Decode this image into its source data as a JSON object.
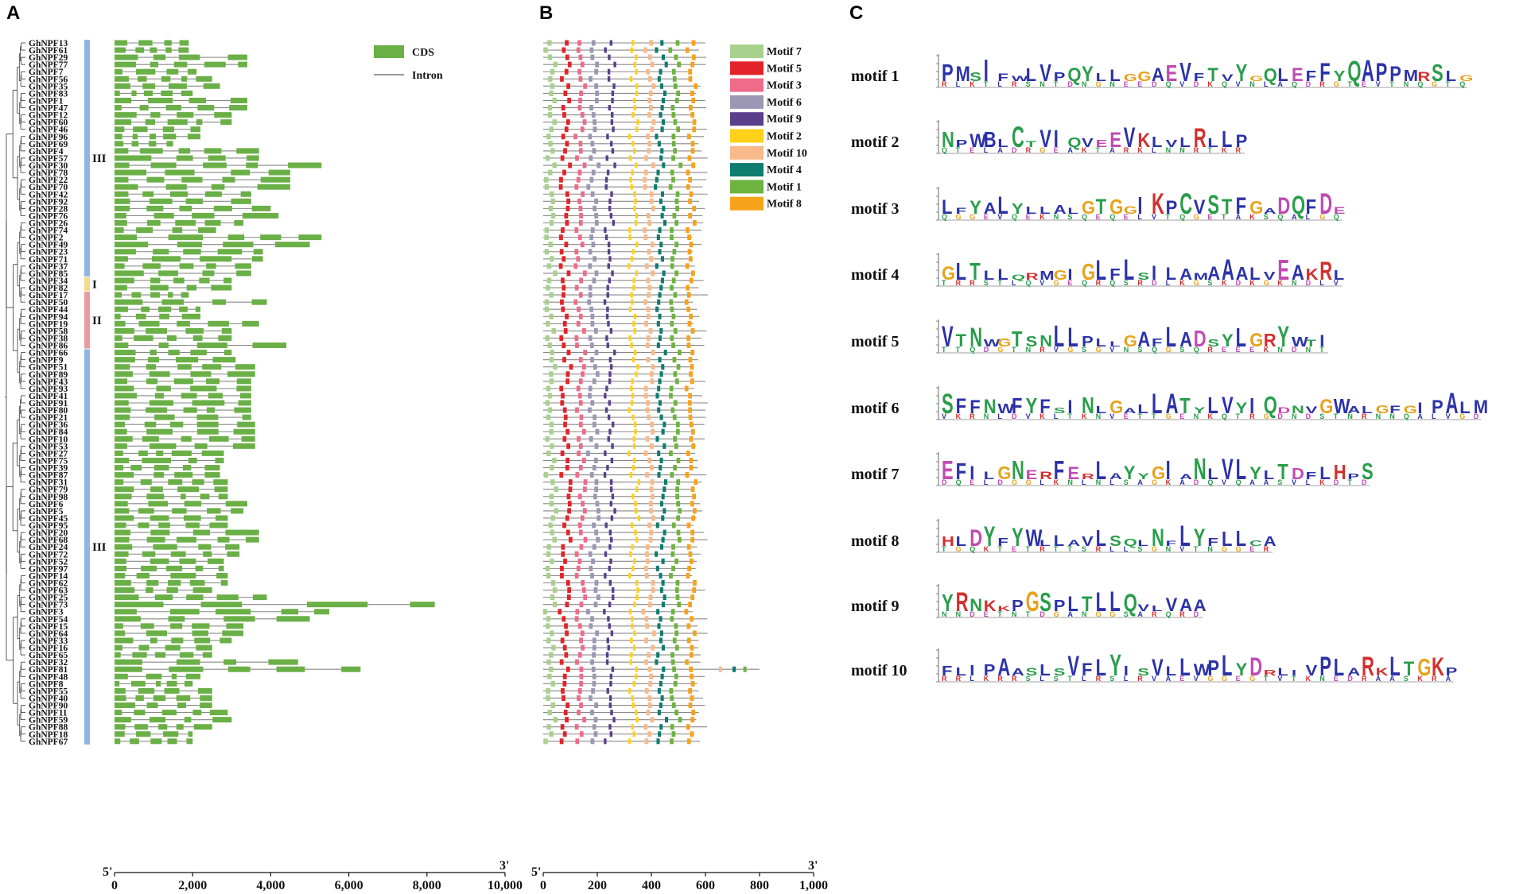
{
  "panels": {
    "a": "A",
    "b": "B",
    "c": "C"
  },
  "genes": [
    "GhNPF13",
    "GhNPF61",
    "GhNPF29",
    "GhNPF77",
    "GhNPF7",
    "GhNPF56",
    "GhNPF35",
    "GhNPF83",
    "GhNPF1",
    "GhNPF47",
    "GhNPF12",
    "GhNPF60",
    "GhNPF46",
    "GhNPF96",
    "GhNPF69",
    "GhNPF4",
    "GhNPF57",
    "GhNPF30",
    "GhNPF78",
    "GhNPF22",
    "GhNPF70",
    "GhNPF42",
    "GhNPF92",
    "GhNPF28",
    "GhNPF76",
    "GhNPF26",
    "GhNPF74",
    "GhNPF2",
    "GhNPF49",
    "GhNPF23",
    "GhNPF71",
    "GhNPF37",
    "GhNPF85",
    "GhNPF34",
    "GhNPF82",
    "GhNPF17",
    "GhNPF50",
    "GhNPF44",
    "GhNPF94",
    "GhNPF19",
    "GhNPF58",
    "GhNPF38",
    "GhNPF86",
    "GhNPF66",
    "GhNPF9",
    "GhNPF51",
    "GhNPF89",
    "GhNPF43",
    "GhNPF93",
    "GhNPF41",
    "GhNPF91",
    "GhNPF80",
    "GhNPF21",
    "GhNPF36",
    "GhNPF84",
    "GhNPF10",
    "GhNPF53",
    "GhNPF27",
    "GhNPF75",
    "GhNPF39",
    "GhNPF87",
    "GhNPF31",
    "GhNPF79",
    "GhNPF98",
    "GhNPF6",
    "GhNPF5",
    "GhNPF45",
    "GhNPF95",
    "GhNPF20",
    "GhNPF68",
    "GhNPF24",
    "GhNPF72",
    "GhNPF52",
    "GhNPF97",
    "GhNPF14",
    "GhNPF62",
    "GhNPF63",
    "GhNPF25",
    "GhNPF73",
    "GhNPF3",
    "GhNPF54",
    "GhNPF15",
    "GhNPF64",
    "GhNPF33",
    "GhNPF16",
    "GhNPF65",
    "GhNPF32",
    "GhNPF81",
    "GhNPF48",
    "GhNPF8",
    "GhNPF55",
    "GhNPF40",
    "GhNPF90",
    "GhNPF11",
    "GhNPF59",
    "GhNPF88",
    "GhNPF18",
    "GhNPF67"
  ],
  "gene_lengths_bp": [
    1900,
    1900,
    3400,
    3400,
    2100,
    2500,
    2700,
    2000,
    3400,
    3400,
    3000,
    3000,
    2200,
    2200,
    1500,
    3700,
    3700,
    5300,
    4500,
    4500,
    4500,
    3500,
    3500,
    4000,
    4200,
    3300,
    2600,
    5300,
    5000,
    3800,
    3800,
    3500,
    3500,
    3000,
    3000,
    1900,
    3900,
    2200,
    2200,
    3700,
    3000,
    3000,
    4400,
    3000,
    3100,
    3600,
    3600,
    3500,
    3500,
    3500,
    3500,
    3500,
    3500,
    3600,
    3600,
    3600,
    3600,
    2800,
    2800,
    2700,
    2700,
    2900,
    2900,
    2900,
    3400,
    3300,
    2900,
    2900,
    3700,
    3700,
    3200,
    3200,
    2800,
    2800,
    2900,
    2900,
    2500,
    3900,
    8200,
    5500,
    5000,
    3300,
    3300,
    3000,
    2500,
    2500,
    4700,
    6300,
    2200,
    2000,
    2500,
    2500,
    2500,
    2900,
    3000,
    2500,
    2000,
    2000
  ],
  "groups": [
    {
      "label": "III",
      "from": 0,
      "to": 32,
      "color": "#8fb6dd"
    },
    {
      "label": "I",
      "from": 33,
      "to": 34,
      "color": "#f3dc8a"
    },
    {
      "label": "II",
      "from": 35,
      "to": 42,
      "color": "#e89ba3"
    },
    {
      "label": "III",
      "from": 43,
      "to": 97,
      "color": "#8fb6dd"
    }
  ],
  "gene_axis": {
    "ticks": [
      "0",
      "2,000",
      "4,000",
      "6,000",
      "8,000",
      "10,000"
    ],
    "end5": "5'",
    "end3": "3'",
    "max": 10000
  },
  "motif_axis": {
    "ticks": [
      "0",
      "200",
      "400",
      "600",
      "800",
      "1,000"
    ],
    "end5": "5'",
    "end3": "3'",
    "max": 1000
  },
  "gene_legend": [
    {
      "name": "CDS",
      "color": "#6ab046"
    },
    {
      "name": "Intron",
      "color": "#777777"
    }
  ],
  "motif_legend": [
    {
      "name": "Motif 7",
      "color": "#a9d18e"
    },
    {
      "name": "Motif 5",
      "color": "#e3232a"
    },
    {
      "name": "Motif 3",
      "color": "#ee6b8a"
    },
    {
      "name": "Motif 6",
      "color": "#9b97b5"
    },
    {
      "name": "Motif 9",
      "color": "#5a3f8c"
    },
    {
      "name": "Motif 2",
      "color": "#ffd11a"
    },
    {
      "name": "Motif 10",
      "color": "#f9b98a"
    },
    {
      "name": "Motif 4",
      "color": "#0e7c6e"
    },
    {
      "name": "Motif 1",
      "color": "#6db33f"
    },
    {
      "name": "Motif 8",
      "color": "#f7a21b"
    }
  ],
  "motif_order": [
    "Motif 7",
    "Motif 5",
    "Motif 3",
    "Motif 6",
    "Motif 9",
    "Motif 2",
    "Motif 10",
    "Motif 4",
    "Motif 1",
    "Motif 8"
  ],
  "motif_positions_aa": [
    20,
    75,
    130,
    180,
    240,
    330,
    385,
    430,
    480,
    540
  ],
  "protein_length_aa": 580,
  "logos": [
    {
      "label": "motif 1",
      "seq": "PMSIFWLVPQYLLGGAEVFTVYGQLEFFYQAPPMRSLG"
    },
    {
      "label": "motif 2",
      "seq": "NPWBLCTVIQVEEVKLVLRLLP"
    },
    {
      "label": "motif 3",
      "seq": "LFYALYLLALGTGGIKPCVSTFGADQFDE"
    },
    {
      "label": "motif 4",
      "seq": "GLTLLQRMGIGLFLSILAMAAALVEAKRL"
    },
    {
      "label": "motif 5",
      "seq": "VTNWGTSNLLPLLGAFLADSYLGRYWTI"
    },
    {
      "label": "motif 6",
      "seq": "SFFNWFYFSINLGALLATYLVYIQDNVGWALGFGIPALM"
    },
    {
      "label": "motif 7",
      "seq": "EFILGNERFERLAYYGIANLVLYLTDFLHPS"
    },
    {
      "label": "motif 8",
      "seq": "HLDYFYWLLAVLSQLNFLYFLLCA"
    },
    {
      "label": "motif 9",
      "seq": "YRNKKPGSPLTLLQVLVAA"
    },
    {
      "label": "motif 10",
      "seq": "FLIPAASLSVFLYISVLLWPLYDRLIVPLARKLTGKP"
    }
  ]
}
